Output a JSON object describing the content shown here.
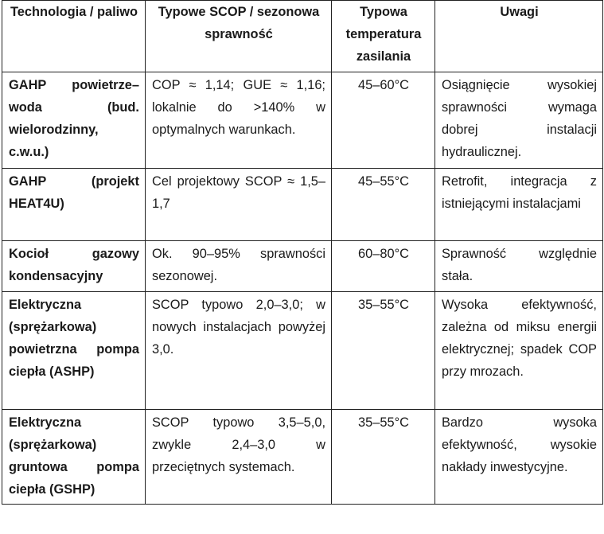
{
  "table": {
    "headers": [
      "Technologia / paliwo",
      "Typowe SCOP / sezonowa sprawność",
      "Typowa temperatura zasilania",
      "Uwagi"
    ],
    "rows": [
      {
        "technology": "GAHP powietrze–woda (bud. wielorodzinny, c.w.u.)",
        "scop": "COP ≈ 1,14; GUE ≈ 1,16; lokalnie do >140% w optymalnych warunkach.",
        "temperature": "45–60°C",
        "notes": "Osiągnięcie wysokiej sprawności wymaga dobrej instalacji hydraulicznej."
      },
      {
        "technology": "GAHP (projekt HEAT4U)",
        "scop": "Cel projektowy SCOP ≈ 1,5–1,7",
        "temperature": "45–55°C",
        "notes": "Retrofit, integracja z istniejącymi instalacjami"
      },
      {
        "technology": "Kocioł gazowy kondensacyjny",
        "scop": "Ok. 90–95% sprawności sezonowej.",
        "temperature": "60–80°C",
        "notes": "Sprawność względnie stała."
      },
      {
        "technology": "Elektryczna (sprężarkowa) powietrzna pompa ciepła (ASHP)",
        "scop": "SCOP typowo 2,0–3,0; w nowych instalacjach powyżej 3,0.",
        "temperature": "35–55°C",
        "notes": "Wysoka efektywność, zależna od miksu energii elektrycznej; spadek COP przy mrozach."
      },
      {
        "technology": "Elektryczna (sprężarkowa) gruntowa pompa ciepła (GSHP)",
        "scop": "SCOP typowo 3,5–5,0, zwykle 2,4–3,0 w przeciętnych systemach.",
        "temperature": "35–55°C",
        "notes": "Bardzo wysoka efektywność, wysokie nakłady inwestycyjne."
      }
    ]
  }
}
